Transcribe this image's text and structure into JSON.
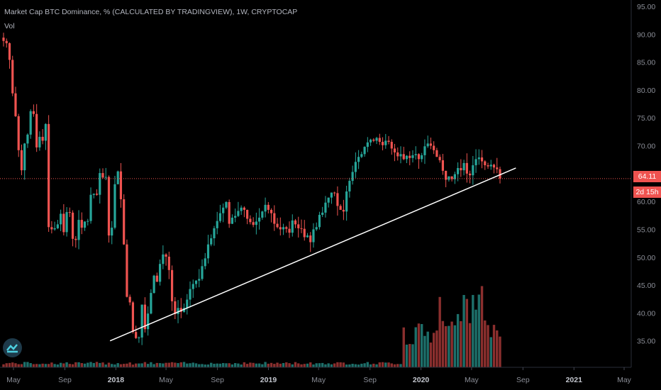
{
  "header": {
    "title": "Market Cap BTC Dominance, % (CALCULATED BY TRADINGVIEW), 1W, CRYPTOCAP",
    "volume_label": "Vol"
  },
  "price_tag": {
    "value": "64.11",
    "countdown": "2d 15h"
  },
  "colors": {
    "up": "#26a69a",
    "down": "#ef5350",
    "background": "#000000",
    "trendline": "#ffffff",
    "axis_text": "#8a8d96"
  },
  "chart_data": {
    "type": "candlestick",
    "interval": "1W",
    "title": "Market Cap BTC Dominance, % (CALCULATED BY TRADINGVIEW), 1W, CRYPTOCAP",
    "ylim": [
      30,
      95
    ],
    "y_ticks": [
      "35.00",
      "40.00",
      "45.00",
      "50.00",
      "55.00",
      "60.00",
      "65.00",
      "70.00",
      "75.00",
      "80.00",
      "85.00",
      "90.00",
      "95.00"
    ],
    "x_ticks": [
      {
        "label": "May",
        "date": "2017-05-01",
        "bold": false
      },
      {
        "label": "Sep",
        "date": "2017-09-01",
        "bold": false
      },
      {
        "label": "2018",
        "date": "2018-01-01",
        "bold": true
      },
      {
        "label": "May",
        "date": "2018-05-01",
        "bold": false
      },
      {
        "label": "Sep",
        "date": "2018-09-01",
        "bold": false
      },
      {
        "label": "2019",
        "date": "2019-01-01",
        "bold": true
      },
      {
        "label": "May",
        "date": "2019-05-01",
        "bold": false
      },
      {
        "label": "Sep",
        "date": "2019-09-01",
        "bold": false
      },
      {
        "label": "2020",
        "date": "2020-01-01",
        "bold": true
      },
      {
        "label": "May",
        "date": "2020-05-01",
        "bold": false
      },
      {
        "label": "Sep",
        "date": "2020-09-01",
        "bold": false
      },
      {
        "label": "2021",
        "date": "2021-01-01",
        "bold": true
      },
      {
        "label": "May",
        "date": "2021-05-01",
        "bold": false
      }
    ],
    "close_series": [
      88.8,
      88.4,
      85.4,
      79.4,
      75.3,
      69.2,
      65.6,
      70.4,
      72.0,
      76.2,
      75.7,
      69.7,
      71.6,
      70.9,
      73.9,
      55.4,
      55.0,
      55.2,
      55.9,
      57.8,
      54.5,
      58.1,
      58.0,
      53.3,
      53.1,
      56.7,
      55.3,
      56.4,
      56.5,
      61.2,
      61.4,
      61.2,
      65.1,
      64.3,
      64.4,
      53.9,
      55.3,
      63.1,
      65.4,
      60.4,
      52.3,
      42.9,
      41.9,
      36.6,
      35.5,
      35.6,
      41.5,
      37.1,
      39.9,
      43.6,
      46.7,
      45.6,
      48.8,
      50.5,
      50.1,
      47.7,
      42.1,
      39.8,
      40.9,
      40.2,
      40.9,
      42.4,
      44.3,
      45.2,
      45.8,
      46.1,
      48.4,
      49.8,
      52.3,
      53.4,
      55.2,
      56.5,
      57.9,
      58.9,
      59.9,
      56.0,
      57.1,
      57.4,
      58.3,
      58.9,
      58.5,
      56.9,
      56.3,
      55.8,
      56.4,
      57.1,
      58.2,
      59.4,
      58.5,
      57.9,
      56.0,
      55.4,
      55.0,
      55.4,
      55.1,
      54.4,
      56.6,
      55.9,
      55.2,
      55.1,
      53.6,
      53.9,
      52.7,
      55.0,
      55.4,
      57.6,
      58.0,
      59.8,
      60.7,
      61.6,
      61.5,
      59.2,
      58.5,
      58.2,
      61.8,
      63.7,
      65.3,
      67.1,
      68.0,
      68.5,
      69.8,
      70.6,
      71.1,
      70.9,
      71.4,
      70.7,
      70.1,
      70.9,
      70.7,
      69.5,
      68.8,
      68.1,
      68.5,
      67.6,
      68.2,
      67.8,
      68.3,
      68.5,
      67.6,
      68.3,
      69.9,
      70.4,
      70.0,
      69.2,
      68.0,
      67.4,
      65.5,
      63.9,
      64.5,
      64.0,
      64.9,
      66.0,
      65.6,
      66.9,
      65.0,
      64.7,
      66.5,
      67.6,
      67.9,
      67.2,
      66.5,
      66.3,
      66.6,
      66.1,
      65.8,
      64.1
    ],
    "volume_relative_max": 1.0,
    "trendline": {
      "from": {
        "date": "2017-12-18",
        "value": 35.0
      },
      "to": {
        "date": "2020-08-15",
        "value": 66.0
      }
    },
    "last_price_line": 64.11
  }
}
